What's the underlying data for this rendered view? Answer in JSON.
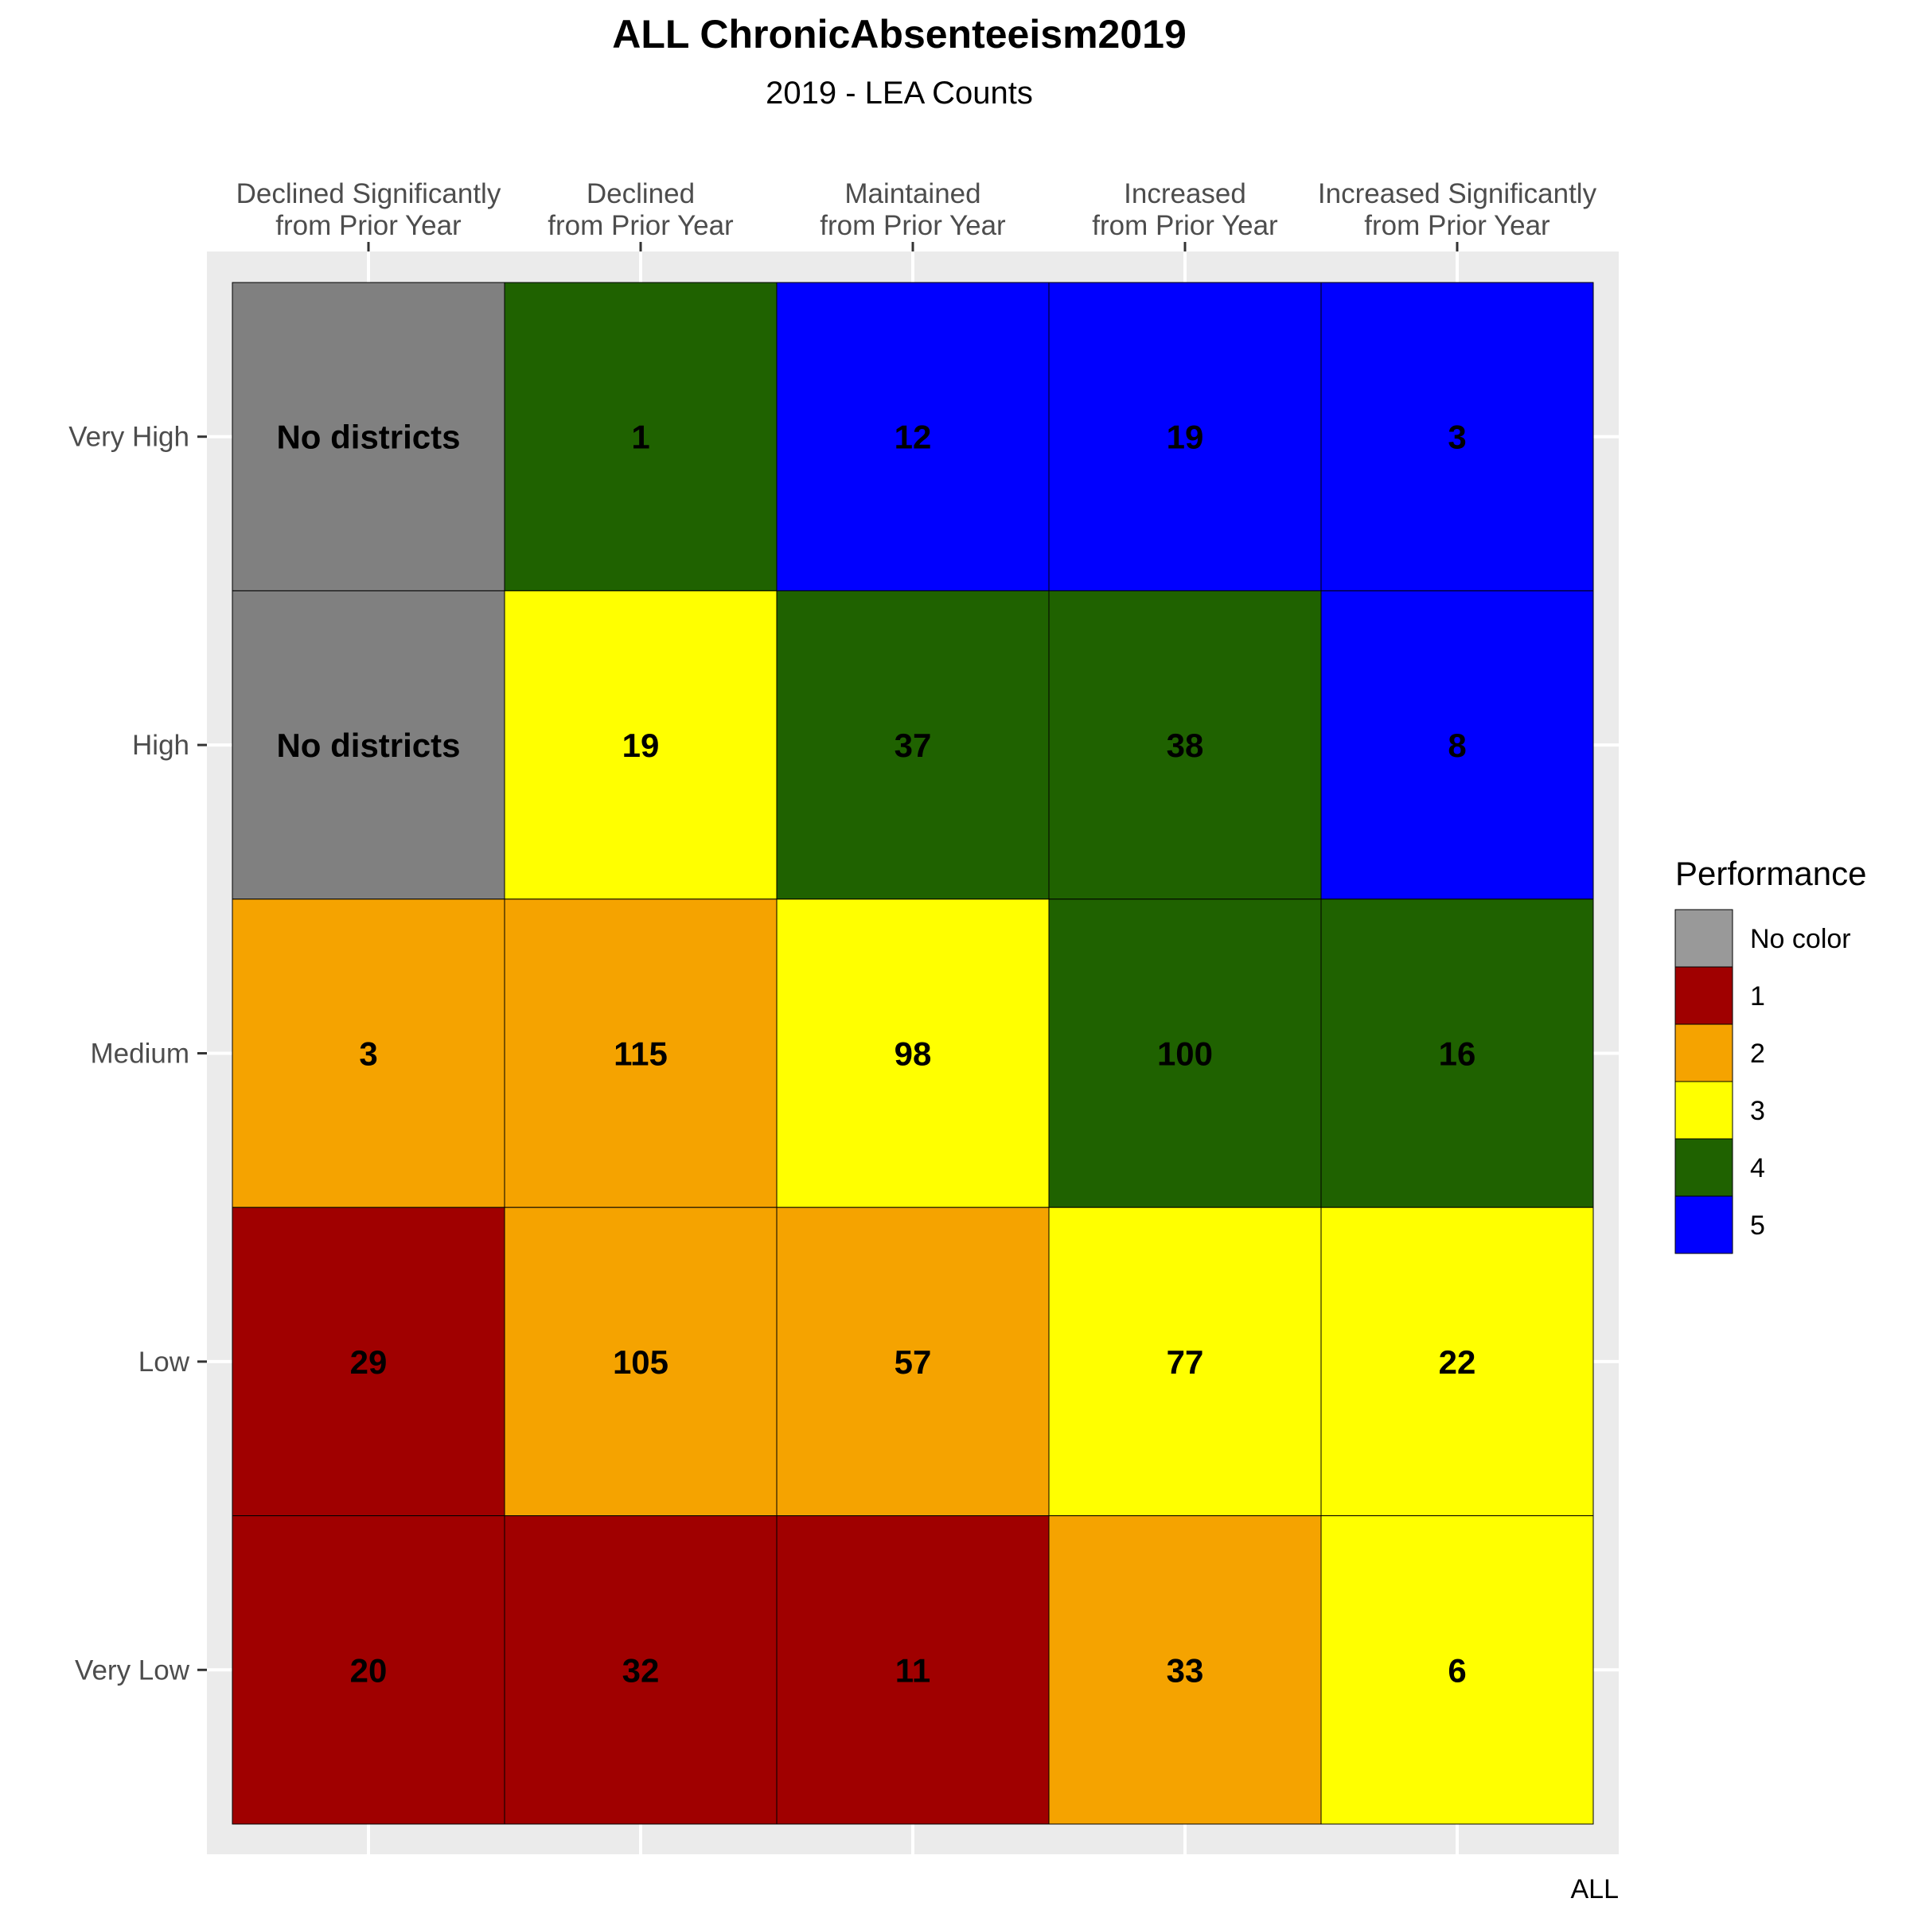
{
  "chart_data": {
    "type": "heatmap",
    "title": "ALL ChronicAbsenteeism2019",
    "subtitle": "2019 - LEA Counts",
    "caption": "ALL",
    "x_categories": [
      [
        "Declined Significantly",
        "from Prior Year"
      ],
      [
        "Declined",
        "from Prior Year"
      ],
      [
        "Maintained",
        "from Prior Year"
      ],
      [
        "Increased",
        "from Prior Year"
      ],
      [
        "Increased Significantly",
        "from Prior Year"
      ]
    ],
    "y_categories": [
      "Very High",
      "High",
      "Medium",
      "Low",
      "Very Low"
    ],
    "cells": [
      [
        {
          "label": "No districts",
          "level": "No color"
        },
        {
          "label": "1",
          "level": "4"
        },
        {
          "label": "12",
          "level": "5"
        },
        {
          "label": "19",
          "level": "5"
        },
        {
          "label": "3",
          "level": "5"
        }
      ],
      [
        {
          "label": "No districts",
          "level": "No color"
        },
        {
          "label": "19",
          "level": "3"
        },
        {
          "label": "37",
          "level": "4"
        },
        {
          "label": "38",
          "level": "4"
        },
        {
          "label": "8",
          "level": "5"
        }
      ],
      [
        {
          "label": "3",
          "level": "2"
        },
        {
          "label": "115",
          "level": "2"
        },
        {
          "label": "98",
          "level": "3"
        },
        {
          "label": "100",
          "level": "4"
        },
        {
          "label": "16",
          "level": "4"
        }
      ],
      [
        {
          "label": "29",
          "level": "1"
        },
        {
          "label": "105",
          "level": "2"
        },
        {
          "label": "57",
          "level": "2"
        },
        {
          "label": "77",
          "level": "3"
        },
        {
          "label": "22",
          "level": "3"
        }
      ],
      [
        {
          "label": "20",
          "level": "1"
        },
        {
          "label": "32",
          "level": "1"
        },
        {
          "label": "11",
          "level": "1"
        },
        {
          "label": "33",
          "level": "2"
        },
        {
          "label": "6",
          "level": "3"
        }
      ]
    ],
    "legend": {
      "title": "Performance",
      "placement": "right",
      "items": [
        {
          "label": "No color",
          "color": "#999999"
        },
        {
          "label": "1",
          "color": "#A00000"
        },
        {
          "label": "2",
          "color": "#F5A300"
        },
        {
          "label": "3",
          "color": "#FFFF00"
        },
        {
          "label": "4",
          "color": "#1F6200"
        },
        {
          "label": "5",
          "color": "#0000FF"
        }
      ]
    },
    "cell_colors": {
      "No color": "#808080",
      "1": "#A00000",
      "2": "#F5A300",
      "3": "#FFFF00",
      "4": "#1F6200",
      "5": "#0000FF"
    },
    "panel_background": "#EBEBEB",
    "grid": true
  }
}
